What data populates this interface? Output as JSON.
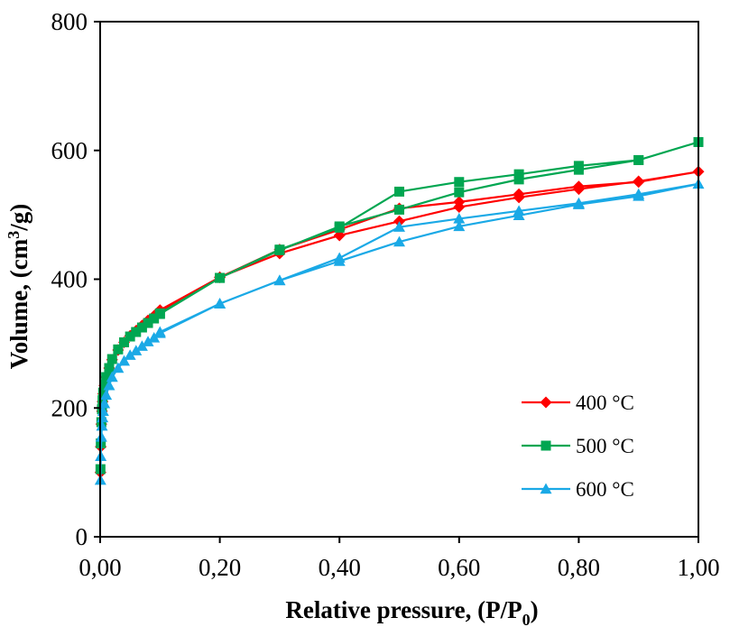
{
  "chart_data": {
    "type": "line",
    "title": "",
    "xlabel": "Relative pressure, (P/P",
    "xlabel_sub": "0",
    "xlabel_end": ")",
    "ylabel": "Volume, (cm",
    "ylabel_sup": "3",
    "ylabel_end": "/g)",
    "xlim": [
      0,
      1
    ],
    "ylim": [
      0,
      800
    ],
    "x_ticks": [
      0,
      0.2,
      0.4,
      0.6,
      0.8,
      1.0
    ],
    "x_tick_labels": [
      "0,00",
      "0,20",
      "0,40",
      "0,60",
      "0,80",
      "1,00"
    ],
    "y_ticks": [
      0,
      200,
      400,
      600,
      800
    ],
    "y_tick_labels": [
      "0",
      "200",
      "400",
      "600",
      "800"
    ],
    "grid": false,
    "legend_position": "lower-right",
    "series": [
      {
        "name": "400 °C",
        "color": "#ff0000",
        "marker": "diamond",
        "x": [
          0.0005,
          0.001,
          0.002,
          0.003,
          0.004,
          0.005,
          0.007,
          0.01,
          0.015,
          0.02,
          0.03,
          0.04,
          0.05,
          0.06,
          0.07,
          0.08,
          0.09,
          0.1,
          0.2,
          0.3,
          0.4,
          0.5,
          0.6,
          0.7,
          0.8,
          0.9,
          1.0,
          0.9,
          0.8,
          0.7,
          0.6,
          0.5,
          0.4,
          0.3,
          0.2,
          0.1
        ],
        "y": [
          100,
          140,
          175,
          195,
          210,
          222,
          235,
          248,
          262,
          275,
          290,
          302,
          312,
          320,
          328,
          336,
          343,
          350,
          403,
          440,
          468,
          490,
          512,
          527,
          540,
          552,
          567,
          551,
          544,
          532,
          520,
          510,
          477,
          446,
          403,
          352
        ]
      },
      {
        "name": "500 °C",
        "color": "#00a651",
        "marker": "square",
        "x": [
          0.0005,
          0.001,
          0.002,
          0.003,
          0.004,
          0.005,
          0.007,
          0.01,
          0.015,
          0.02,
          0.03,
          0.04,
          0.05,
          0.06,
          0.07,
          0.08,
          0.09,
          0.1,
          0.2,
          0.3,
          0.4,
          0.5,
          0.6,
          0.7,
          0.8,
          0.9,
          1.0,
          0.9,
          0.8,
          0.7,
          0.6,
          0.5,
          0.4,
          0.3,
          0.2,
          0.1
        ],
        "y": [
          105,
          145,
          178,
          198,
          212,
          224,
          236,
          248,
          262,
          276,
          291,
          302,
          311,
          318,
          325,
          332,
          339,
          346,
          402,
          445,
          482,
          508,
          535,
          555,
          570,
          585,
          613,
          585,
          576,
          563,
          551,
          536,
          480,
          446,
          402,
          347
        ]
      },
      {
        "name": "600 °C",
        "color": "#1aa9e6",
        "marker": "triangle",
        "x": [
          0.0005,
          0.001,
          0.002,
          0.003,
          0.004,
          0.005,
          0.007,
          0.01,
          0.015,
          0.02,
          0.03,
          0.04,
          0.05,
          0.06,
          0.07,
          0.08,
          0.09,
          0.1,
          0.2,
          0.3,
          0.4,
          0.5,
          0.6,
          0.7,
          0.8,
          0.9,
          1.0,
          0.9,
          0.8,
          0.7,
          0.6,
          0.5,
          0.4,
          0.3,
          0.2,
          0.1
        ],
        "y": [
          88,
          125,
          155,
          172,
          185,
          195,
          207,
          220,
          235,
          248,
          262,
          273,
          282,
          289,
          296,
          303,
          309,
          316,
          362,
          398,
          428,
          458,
          482,
          499,
          516,
          529,
          548,
          532,
          518,
          506,
          494,
          481,
          433,
          398,
          362,
          318
        ]
      }
    ]
  }
}
